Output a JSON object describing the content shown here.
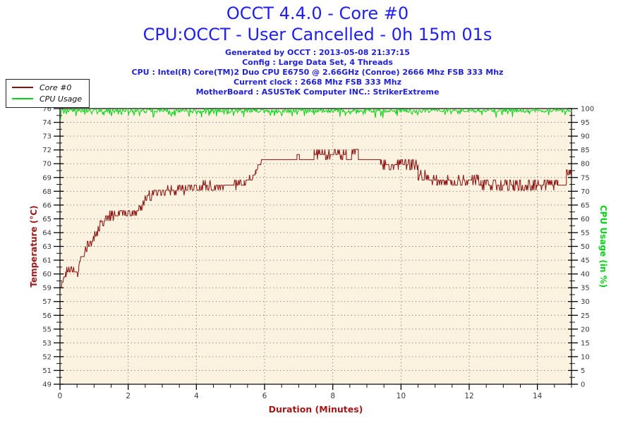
{
  "header": {
    "title_line1": "OCCT 4.4.0 - Core #0",
    "title_line2": "CPU:OCCT - User Cancelled - 0h 15m 01s",
    "info_lines": [
      "Generated by OCCT : 2013-05-08 21:37:15",
      "Config : Large Data Set, 4 Threads",
      "CPU : Intel(R) Core(TM)2 Duo CPU E6750 @ 2.66GHz (Conroe) 2666 Mhz FSB 333 Mhz",
      "Current clock : 2668 Mhz FSB 333 Mhz",
      "MotherBoard : ASUSTeK Computer INC.: StrikerExtreme"
    ]
  },
  "legend": {
    "items": [
      {
        "label": "Core #0",
        "color": "#8b1111"
      },
      {
        "label": "CPU Usage",
        "color": "#00d515"
      }
    ]
  },
  "colors": {
    "title_blue": "#2020f0",
    "info_blue": "#2222cc",
    "temp_red": "#8b1111",
    "temp_axis_red": "#a01818",
    "cpu_green": "#00d515",
    "plot_bg": "#fbf2df",
    "grid": "#555555",
    "tick_label": "#3a3a3a",
    "frame": "#000000"
  },
  "chart_data": {
    "type": "line",
    "xlabel": "Duration (Minutes)",
    "ylabel_left": "Temperature (°C)",
    "ylabel_right": "CPU Usage (in %)",
    "x_range": [
      0,
      15
    ],
    "x_major_ticks": [
      0,
      2,
      4,
      6,
      8,
      10,
      12,
      14
    ],
    "x_minor_step": 0.5,
    "y_left_range": [
      49,
      76
    ],
    "y_left_labels": [
      49,
      51,
      52,
      53,
      55,
      56,
      57,
      59,
      60,
      61,
      63,
      64,
      65,
      66,
      68,
      69,
      70,
      72,
      73,
      74,
      76
    ],
    "y_right_range": [
      0,
      100
    ],
    "y_right_labels": [
      0,
      5,
      10,
      15,
      20,
      25,
      30,
      35,
      40,
      45,
      50,
      55,
      60,
      65,
      70,
      75,
      80,
      85,
      90,
      95,
      100
    ],
    "grid": "dotted",
    "legend_position": "top-left",
    "plot_bg": "#fbf2df",
    "noise_seed": 12,
    "sample_step_minutes": 0.02,
    "series": [
      {
        "name": "Core #0",
        "axis": "left",
        "color": "#8b1111",
        "quantize": 0.5,
        "segments": [
          [
            0.0,
            0.05,
            58.6,
            58.6,
            0.1
          ],
          [
            0.05,
            0.18,
            58.8,
            60.0,
            0.2
          ],
          [
            0.18,
            0.55,
            60.1,
            60.1,
            0.45
          ],
          [
            0.55,
            0.8,
            60.8,
            62.6,
            0.4
          ],
          [
            0.8,
            1.0,
            62.8,
            63.3,
            0.5
          ],
          [
            1.0,
            1.2,
            63.5,
            64.9,
            0.55
          ],
          [
            1.2,
            1.5,
            65.0,
            65.4,
            0.55
          ],
          [
            1.5,
            2.3,
            65.6,
            66.0,
            0.45
          ],
          [
            2.3,
            2.7,
            66.3,
            67.7,
            0.5
          ],
          [
            2.7,
            3.6,
            67.9,
            68.1,
            0.5
          ],
          [
            3.6,
            5.4,
            68.2,
            68.5,
            0.5
          ],
          [
            5.4,
            5.75,
            68.8,
            69.6,
            0.4
          ],
          [
            5.75,
            5.95,
            69.9,
            71.0,
            0.15
          ],
          [
            5.95,
            6.95,
            71.0,
            71.0,
            0.0
          ],
          [
            6.95,
            7.02,
            71.5,
            71.5,
            0.0
          ],
          [
            7.02,
            7.45,
            71.0,
            71.0,
            0.0
          ],
          [
            7.45,
            8.4,
            71.5,
            71.5,
            0.55
          ],
          [
            8.4,
            8.55,
            71.0,
            71.0,
            0.0
          ],
          [
            8.55,
            8.75,
            71.8,
            71.8,
            0.25
          ],
          [
            8.75,
            9.4,
            71.0,
            71.0,
            0.0
          ],
          [
            9.4,
            10.5,
            70.5,
            70.5,
            0.55
          ],
          [
            10.5,
            11.05,
            69.5,
            69.1,
            0.55
          ],
          [
            11.05,
            12.35,
            68.9,
            68.9,
            0.5
          ],
          [
            12.35,
            13.3,
            68.6,
            68.6,
            0.55
          ],
          [
            13.3,
            14.0,
            68.4,
            68.4,
            0.7
          ],
          [
            14.0,
            14.6,
            68.7,
            68.7,
            0.55
          ],
          [
            14.6,
            14.85,
            68.7,
            68.7,
            0.05
          ],
          [
            14.85,
            15.0,
            69.7,
            69.6,
            0.3
          ]
        ]
      },
      {
        "name": "CPU Usage",
        "axis": "right",
        "color": "#00d515",
        "quantize": 0,
        "dip_chance": 0.18,
        "dip_max": 2.2,
        "clamp": [
          96.2,
          100
        ],
        "segments": [
          [
            0.0,
            0.03,
            76.0,
            99.3,
            0.0
          ],
          [
            0.03,
            15.0,
            99.3,
            99.3,
            0.7
          ]
        ]
      }
    ]
  }
}
